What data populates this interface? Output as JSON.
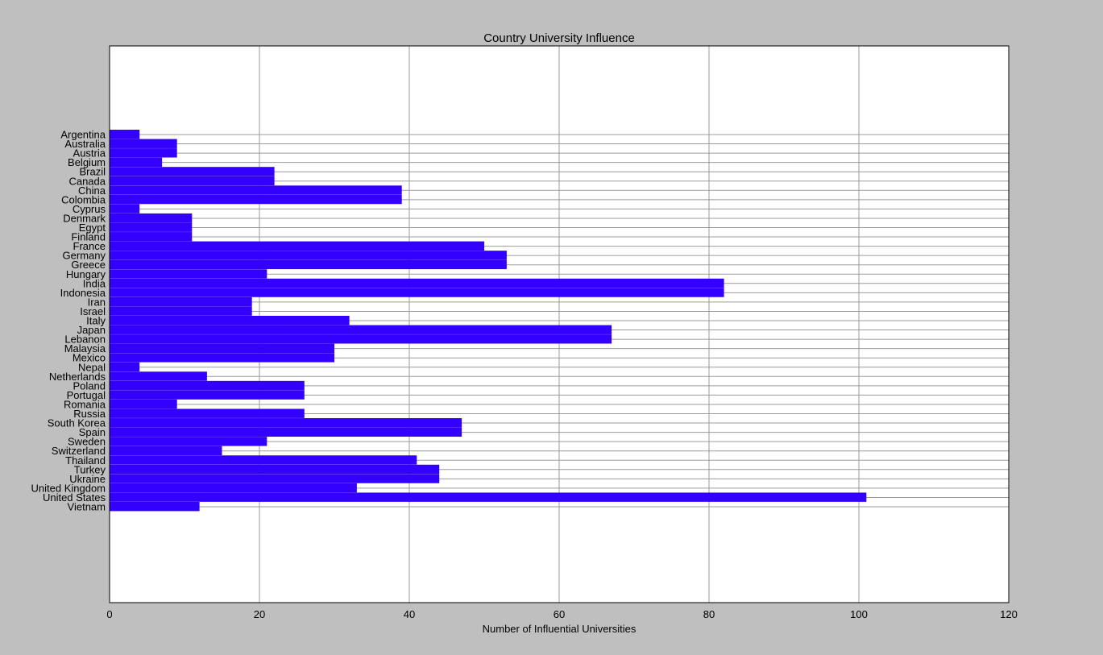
{
  "chart_data": {
    "type": "bar",
    "orientation": "horizontal",
    "title": "Country University Influence",
    "xlabel": "Number of Influential Universities",
    "ylabel": "",
    "xlim": [
      0,
      120
    ],
    "xticks": [
      "0",
      "20",
      "40",
      "60",
      "80",
      "100",
      "120"
    ],
    "grid": true,
    "bar_color": "#3300ff",
    "background_color": "#bfbfbf",
    "plot_background_color": "#ffffff",
    "categories": [
      "Argentina",
      "Australia",
      "Austria",
      "Belgium",
      "Brazil",
      "Canada",
      "China",
      "Colombia",
      "Cyprus",
      "Denmark",
      "Egypt",
      "Finland",
      "France",
      "Germany",
      "Greece",
      "Hungary",
      "India",
      "Indonesia",
      "Iran",
      "Israel",
      "Italy",
      "Japan",
      "Lebanon",
      "Malaysia",
      "Mexico",
      "Nepal",
      "Netherlands",
      "Poland",
      "Portugal",
      "Romania",
      "Russia",
      "South Korea",
      "Spain",
      "Sweden",
      "Switzerland",
      "Thailand",
      "Turkey",
      "Ukraine",
      "United Kingdom",
      "United States",
      "Vietnam"
    ],
    "values": [
      4,
      9,
      9,
      7,
      22,
      22,
      39,
      39,
      4,
      11,
      11,
      11,
      50,
      53,
      53,
      21,
      82,
      82,
      19,
      19,
      32,
      67,
      67,
      30,
      30,
      4,
      13,
      26,
      26,
      9,
      26,
      47,
      47,
      21,
      15,
      41,
      44,
      44,
      33,
      101,
      12
    ]
  }
}
